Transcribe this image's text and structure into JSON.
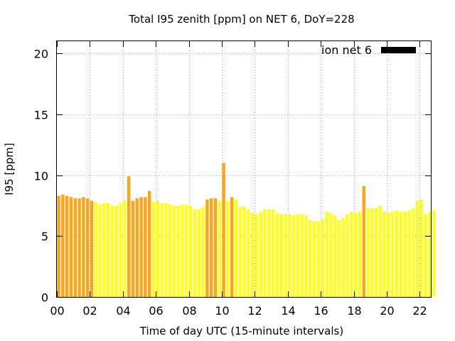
{
  "chart_data": {
    "type": "bar",
    "title": "Total I95 zenith [ppm] on NET 6, DoY=228",
    "xlabel": "Time of day UTC (15-minute intervals)",
    "ylabel": "I95 [ppm]",
    "ylim": [
      0,
      21
    ],
    "yticks": [
      0,
      5,
      10,
      15,
      20
    ],
    "xticks": [
      "00",
      "02",
      "04",
      "06",
      "08",
      "10",
      "12",
      "14",
      "16",
      "18",
      "20",
      "22"
    ],
    "grid": true,
    "legend": {
      "position": "top-right",
      "entries": [
        {
          "label": "ion net 6",
          "color": "#000000"
        }
      ]
    },
    "colors": {
      "highlight": "#ffa319",
      "normal": "#ffff1f"
    },
    "x_hours": [
      0.0,
      0.25,
      0.5,
      0.75,
      1.0,
      1.25,
      1.5,
      1.75,
      2.0,
      2.25,
      2.5,
      2.75,
      3.0,
      3.25,
      3.5,
      3.75,
      4.0,
      4.25,
      4.5,
      4.75,
      5.0,
      5.25,
      5.5,
      5.75,
      6.0,
      6.25,
      6.5,
      6.75,
      7.0,
      7.25,
      7.5,
      7.75,
      8.0,
      8.25,
      8.5,
      8.75,
      9.0,
      9.25,
      9.5,
      9.75,
      10.0,
      10.25,
      10.5,
      10.75,
      11.0,
      11.25,
      11.5,
      11.75,
      12.0,
      12.25,
      12.5,
      12.75,
      13.0,
      13.25,
      13.5,
      13.75,
      14.0,
      14.25,
      14.5,
      14.75,
      15.0,
      15.25,
      15.5,
      15.75,
      16.0,
      16.25,
      16.5,
      16.75,
      17.0,
      17.25,
      17.5,
      17.75,
      18.0,
      18.25,
      18.5,
      18.75,
      19.0,
      19.25,
      19.5,
      19.75,
      20.0,
      20.25,
      20.5,
      20.75,
      21.0,
      21.25,
      21.5,
      21.75,
      22.0,
      22.25,
      22.5,
      22.75
    ],
    "values": [
      8.3,
      8.4,
      8.3,
      8.2,
      8.1,
      8.1,
      8.2,
      8.1,
      7.9,
      7.8,
      7.6,
      7.7,
      7.7,
      7.5,
      7.5,
      7.7,
      7.9,
      9.9,
      7.9,
      8.1,
      8.2,
      8.2,
      8.7,
      7.8,
      7.9,
      7.7,
      7.7,
      7.6,
      7.5,
      7.5,
      7.6,
      7.6,
      7.5,
      7.2,
      7.2,
      7.4,
      8.0,
      8.1,
      8.1,
      7.9,
      11.0,
      7.9,
      8.2,
      8.0,
      7.4,
      7.4,
      7.2,
      6.9,
      6.8,
      7.0,
      7.2,
      7.2,
      7.2,
      6.9,
      6.8,
      6.8,
      6.8,
      6.7,
      6.8,
      6.8,
      6.7,
      6.3,
      6.2,
      6.2,
      6.4,
      7.0,
      6.9,
      6.7,
      6.3,
      6.5,
      6.8,
      7.0,
      6.9,
      7.0,
      9.1,
      7.3,
      7.3,
      7.3,
      7.5,
      7.0,
      6.9,
      7.0,
      7.1,
      7.0,
      7.0,
      7.1,
      7.3,
      7.9,
      8.0,
      6.8,
      7.0,
      7.1
    ],
    "highlighted": [
      1,
      1,
      1,
      1,
      1,
      1,
      1,
      1,
      1,
      0,
      0,
      0,
      0,
      0,
      0,
      0,
      0,
      1,
      1,
      1,
      1,
      1,
      1,
      0,
      0,
      0,
      0,
      0,
      0,
      0,
      0,
      0,
      0,
      0,
      0,
      0,
      1,
      1,
      1,
      0,
      1,
      0,
      1,
      0,
      0,
      0,
      0,
      0,
      0,
      0,
      0,
      0,
      0,
      0,
      0,
      0,
      0,
      0,
      0,
      0,
      0,
      0,
      0,
      0,
      0,
      0,
      0,
      0,
      0,
      0,
      0,
      0,
      0,
      0,
      1,
      0,
      0,
      0,
      0,
      0,
      0,
      0,
      0,
      0,
      0,
      0,
      0,
      0,
      0,
      0,
      0,
      0
    ]
  }
}
